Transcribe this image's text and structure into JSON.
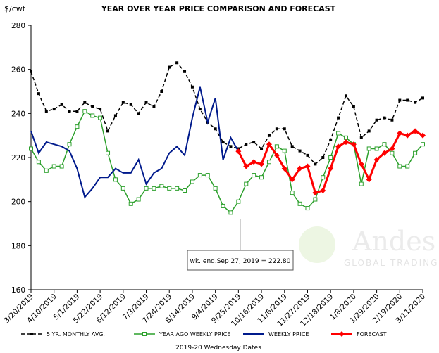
{
  "chart_data": {
    "type": "line",
    "title": "YEAR OVER YEAR PRICE COMPARISON AND FORECAST",
    "y_axis_label": "$/cwt",
    "x_axis_label": "2019-20 Wednesday Dates",
    "annotation": "wk. end.Sep 27, 2019  =  222.80",
    "watermark": {
      "name": "Andes",
      "sub": "GLOBAL TRADING"
    },
    "categories": [
      "3/20/2019",
      null,
      null,
      "4/10/2019",
      null,
      null,
      "5/1/2019",
      null,
      null,
      "5/22/2019",
      null,
      null,
      "6/12/2019",
      null,
      null,
      "7/3/2019",
      null,
      null,
      "7/24/2019",
      null,
      null,
      "8/14/2019",
      null,
      null,
      "9/4/2019",
      null,
      null,
      "9/25/2019",
      null,
      null,
      "10/16/2019",
      null,
      null,
      "11/6/2019",
      null,
      null,
      "11/27/2019",
      null,
      null,
      "12/18/2019",
      null,
      null,
      "1/8/2020",
      null,
      null,
      "1/29/2020",
      null,
      null,
      "2/19/2020",
      null,
      null,
      "3/11/2020"
    ],
    "ylim": [
      160,
      280
    ],
    "yticks": [
      160,
      180,
      200,
      220,
      240,
      260,
      280
    ],
    "grid": false,
    "legend": "bottom",
    "series": [
      {
        "name": "5 YR. MONTHLY AVG.",
        "color": "#000000",
        "line_style": "dashed",
        "marker": "square",
        "values": [
          259,
          249,
          241,
          242,
          244,
          241,
          241,
          245,
          243,
          242,
          232,
          239,
          245,
          244,
          240,
          245,
          243,
          250,
          261,
          263,
          259,
          252,
          242,
          236,
          233,
          227,
          225,
          224,
          226,
          227,
          224,
          230,
          233,
          233,
          225,
          223,
          221,
          217,
          220,
          228,
          238,
          248,
          243,
          229,
          232,
          237,
          238,
          237,
          246,
          246,
          245,
          247
        ]
      },
      {
        "name": "YEAR AGO WEEKLY PRICE",
        "color": "#2ca02c",
        "line_style": "solid",
        "marker": "hollow-square",
        "values": [
          224,
          218,
          214,
          216,
          216,
          226,
          234,
          241,
          239,
          238,
          222,
          210,
          206,
          199,
          201,
          206,
          206,
          207,
          206,
          206,
          205,
          209,
          212,
          212,
          206,
          198,
          195,
          200,
          208,
          212,
          211,
          218,
          225,
          223,
          204,
          199,
          197,
          201,
          211,
          220,
          231,
          229,
          226,
          208,
          224,
          224,
          226,
          222,
          216,
          216,
          222,
          226
        ]
      },
      {
        "name": "WEEKLY PRICE",
        "color": "#001a8c",
        "line_style": "solid",
        "marker": "none",
        "values": [
          232,
          222,
          227,
          226,
          225,
          223,
          215,
          202,
          206,
          211,
          211,
          215,
          213,
          213,
          219,
          208,
          213,
          215,
          222,
          225,
          221,
          238,
          252,
          236,
          247,
          219,
          229,
          222.8,
          null,
          null,
          null,
          null,
          null,
          null,
          null,
          null,
          null,
          null,
          null,
          null,
          null,
          null,
          null,
          null,
          null,
          null,
          null,
          null,
          null,
          null,
          null,
          null
        ]
      },
      {
        "name": "FORECAST",
        "color": "#ff0000",
        "line_style": "solid",
        "marker": "diamond",
        "values": [
          null,
          null,
          null,
          null,
          null,
          null,
          null,
          null,
          null,
          null,
          null,
          null,
          null,
          null,
          null,
          null,
          null,
          null,
          null,
          null,
          null,
          null,
          null,
          null,
          null,
          null,
          null,
          222.8,
          216,
          218,
          217,
          226,
          221,
          215,
          210,
          215,
          216,
          204,
          205,
          215,
          225,
          227,
          226,
          217,
          210,
          219,
          222,
          224,
          231,
          230,
          232,
          230
        ]
      }
    ]
  }
}
